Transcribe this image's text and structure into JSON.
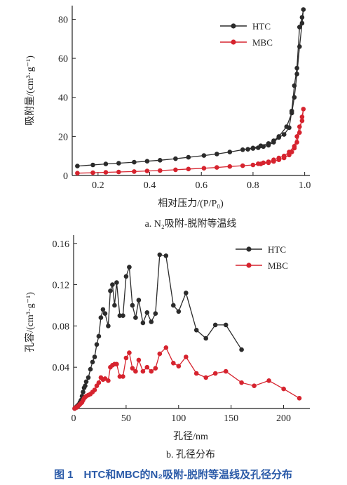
{
  "chart_data": [
    {
      "type": "line",
      "caption": "a. N₂吸附-脱附等温线",
      "xlabel": "相对压力/(P/P₀)",
      "ylabel": "吸附量/(cm³·g⁻¹)",
      "xlim": [
        0.1,
        1.02
      ],
      "ylim": [
        0,
        87
      ],
      "xticks": [
        0.2,
        0.4,
        0.6,
        0.8,
        1.0
      ],
      "xtick_labels": [
        "0.2",
        "0.4",
        "0.6",
        "0.8",
        "1.0"
      ],
      "yticks": [
        0,
        20,
        40,
        60,
        80
      ],
      "legend_position": "top-right",
      "series": [
        {
          "name": "HTC",
          "color": "#2b2b2b",
          "x": [
            0.12,
            0.18,
            0.23,
            0.28,
            0.34,
            0.39,
            0.44,
            0.5,
            0.55,
            0.61,
            0.66,
            0.71,
            0.76,
            0.8,
            0.83,
            0.86,
            0.88,
            0.9,
            0.93,
            0.95,
            0.96,
            0.97,
            0.98,
            0.99,
            0.995,
            0.99,
            0.98,
            0.97,
            0.96,
            0.95,
            0.94,
            0.92,
            0.9,
            0.88,
            0.86,
            0.84,
            0.82,
            0.8,
            0.78
          ],
          "y": [
            4.8,
            5.4,
            5.9,
            6.3,
            6.8,
            7.3,
            7.8,
            8.6,
            9.3,
            10.2,
            11.0,
            12.0,
            13.2,
            14.1,
            15.2,
            16.4,
            17.8,
            20.0,
            25.0,
            32.0,
            40.0,
            52.0,
            66.0,
            78.0,
            85.0,
            81.0,
            76.0,
            55.0,
            46.0,
            33.0,
            24.5,
            21.0,
            19.5,
            17.0,
            15.5,
            14.8,
            14.2,
            13.8,
            13.4
          ]
        },
        {
          "name": "MBC",
          "color": "#d6232e",
          "x": [
            0.12,
            0.18,
            0.23,
            0.28,
            0.34,
            0.39,
            0.44,
            0.5,
            0.55,
            0.61,
            0.66,
            0.71,
            0.76,
            0.8,
            0.83,
            0.86,
            0.88,
            0.9,
            0.92,
            0.94,
            0.95,
            0.96,
            0.97,
            0.98,
            0.99,
            0.995,
            0.99,
            0.98,
            0.97,
            0.96,
            0.94,
            0.92,
            0.9,
            0.88,
            0.86,
            0.84,
            0.82
          ],
          "y": [
            1.2,
            1.4,
            1.6,
            1.8,
            2.0,
            2.3,
            2.5,
            2.9,
            3.3,
            3.7,
            4.1,
            4.6,
            5.0,
            5.4,
            5.9,
            6.5,
            7.2,
            8.0,
            9.0,
            10.5,
            12.0,
            14.0,
            17.0,
            22.0,
            30.0,
            34.0,
            28.0,
            25.0,
            20.0,
            15.0,
            12.0,
            10.0,
            9.0,
            8.0,
            7.0,
            6.5,
            6.0
          ]
        }
      ]
    },
    {
      "type": "line",
      "caption": "b. 孔径分布",
      "xlabel": "孔径/nm",
      "ylabel": "孔容/(cm³·g⁻¹)",
      "xlim": [
        0,
        225
      ],
      "ylim": [
        0,
        0.168
      ],
      "xticks": [
        0,
        50,
        100,
        150,
        200
      ],
      "yticks": [
        0.04,
        0.08,
        0.12,
        0.16
      ],
      "ytick_labels": [
        "0.04",
        "0.08",
        "0.12",
        "0.16"
      ],
      "legend_position": "top-right",
      "series": [
        {
          "name": "HTC",
          "color": "#2b2b2b",
          "x": [
            1,
            2,
            3,
            4,
            5,
            6,
            7,
            8,
            9,
            10,
            11,
            12,
            14,
            16,
            18,
            20,
            22,
            24,
            26,
            28,
            30,
            33,
            35,
            37,
            39,
            41,
            44,
            47,
            50,
            53,
            56,
            59,
            62,
            66,
            70,
            74,
            78,
            82,
            88,
            95,
            100,
            107,
            117,
            126,
            135,
            145,
            160
          ],
          "y": [
            0.0,
            0.001,
            0.002,
            0.003,
            0.004,
            0.006,
            0.008,
            0.012,
            0.016,
            0.02,
            0.022,
            0.026,
            0.03,
            0.038,
            0.045,
            0.05,
            0.062,
            0.07,
            0.088,
            0.096,
            0.092,
            0.08,
            0.114,
            0.12,
            0.1,
            0.122,
            0.09,
            0.09,
            0.128,
            0.137,
            0.1,
            0.088,
            0.105,
            0.083,
            0.093,
            0.084,
            0.092,
            0.149,
            0.148,
            0.1,
            0.094,
            0.112,
            0.076,
            0.068,
            0.081,
            0.081,
            0.057
          ]
        },
        {
          "name": "MBC",
          "color": "#d6232e",
          "x": [
            1,
            2,
            3,
            4,
            5,
            6,
            7,
            8,
            9,
            10,
            11,
            12,
            14,
            16,
            18,
            20,
            22,
            24,
            26,
            28,
            30,
            33,
            35,
            37,
            39,
            41,
            44,
            47,
            50,
            53,
            56,
            59,
            62,
            66,
            70,
            74,
            78,
            82,
            88,
            95,
            100,
            107,
            117,
            126,
            135,
            145,
            160,
            172,
            186,
            200,
            215
          ],
          "y": [
            0.0,
            0.001,
            0.001,
            0.002,
            0.003,
            0.004,
            0.005,
            0.006,
            0.008,
            0.01,
            0.011,
            0.012,
            0.013,
            0.014,
            0.016,
            0.018,
            0.022,
            0.025,
            0.03,
            0.028,
            0.029,
            0.027,
            0.04,
            0.042,
            0.043,
            0.043,
            0.031,
            0.031,
            0.049,
            0.054,
            0.039,
            0.036,
            0.047,
            0.036,
            0.04,
            0.036,
            0.039,
            0.053,
            0.059,
            0.044,
            0.041,
            0.05,
            0.034,
            0.03,
            0.034,
            0.036,
            0.025,
            0.022,
            0.027,
            0.019,
            0.01
          ]
        }
      ]
    }
  ],
  "figure_caption": "图 1　HTC和MBC的N₂吸附-脱附等温线及孔径分布"
}
